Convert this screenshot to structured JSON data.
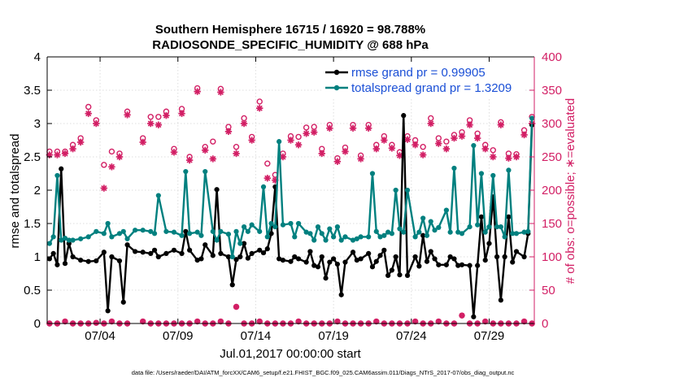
{
  "colors": {
    "rmse": "#000000",
    "spread": "#00807f",
    "obs": "#d21e64",
    "legend_text": "#1a4fd6",
    "axes": "#000000"
  },
  "chart_data": {
    "type": "line",
    "title_line1": "Southern Hemisphere 16715 / 16920 = 98.788%",
    "title_line2": "RADIOSONDE_SPECIFIC_HUMIDITY @ 688 hPa",
    "xlabel": "Jul.01,2017 00:00:00 start",
    "ylabel_left": "rmse and totalspread",
    "ylabel_right": "# of obs: o=possible; ∗=evaluated",
    "xlim": [
      0.6,
      31.9
    ],
    "ylim_left": [
      0,
      4
    ],
    "ylim_right": [
      0,
      400
    ],
    "x_ticks": [
      4,
      9,
      14,
      19,
      24,
      29
    ],
    "x_tick_labels": [
      "07/04",
      "07/09",
      "07/14",
      "07/19",
      "07/24",
      "07/29"
    ],
    "y_ticks_left": [
      "0",
      "0.5",
      "1",
      "1.5",
      "2",
      "2.5",
      "3",
      "3.5",
      "4"
    ],
    "y_ticks_right": [
      "0",
      "50",
      "100",
      "150",
      "200",
      "250",
      "300",
      "350",
      "400"
    ],
    "legend": [
      {
        "name": "rmse",
        "label": "rmse grand pr = 0.99905"
      },
      {
        "name": "totalspread",
        "label": "totalspread grand pr = 1.3209"
      }
    ],
    "series": [
      {
        "name": "rmse",
        "axis": "left",
        "x": [
          0.75,
          1.0,
          1.25,
          1.5,
          1.75,
          2.0,
          2.25,
          2.75,
          3.25,
          3.75,
          4.25,
          4.5,
          4.75,
          5.25,
          5.5,
          5.75,
          6.25,
          6.75,
          7.25,
          7.5,
          7.75,
          8.25,
          8.75,
          9.25,
          9.5,
          9.75,
          10.25,
          10.5,
          10.75,
          11.25,
          11.5,
          11.75,
          12.25,
          12.5,
          12.75,
          13.0,
          13.25,
          13.5,
          13.75,
          14.25,
          14.5,
          14.75,
          15.0,
          15.25,
          15.5,
          15.75,
          16.25,
          16.5,
          16.75,
          17.25,
          17.5,
          17.75,
          18.0,
          18.25,
          18.5,
          18.75,
          19.0,
          19.25,
          19.5,
          19.75,
          20.25,
          20.5,
          20.75,
          21.25,
          21.5,
          21.75,
          22.0,
          22.25,
          22.5,
          22.75,
          23.0,
          23.25,
          23.5,
          23.75,
          24.25,
          24.5,
          24.75,
          25.0,
          25.25,
          25.5,
          25.75,
          26.25,
          26.5,
          26.75,
          27.0,
          27.25,
          27.75,
          28.0,
          28.25,
          28.5,
          28.75,
          29.0,
          29.25,
          29.5,
          29.75,
          30.0,
          30.25,
          30.5,
          30.75,
          31.25,
          31.5,
          31.75
        ],
        "y": [
          0.97,
          1.05,
          0.88,
          2.32,
          0.9,
          1.2,
          1.0,
          0.95,
          0.93,
          0.94,
          1.07,
          0.19,
          1.0,
          0.94,
          0.32,
          1.18,
          1.08,
          1.07,
          1.05,
          1.1,
          1.0,
          1.05,
          1.1,
          1.05,
          1.38,
          1.1,
          0.95,
          0.97,
          1.18,
          1.02,
          2.01,
          1.05,
          1.0,
          0.58,
          0.96,
          1.0,
          1.2,
          0.98,
          1.05,
          1.1,
          1.06,
          1.12,
          1.35,
          2.05,
          0.97,
          0.95,
          0.93,
          1.0,
          0.97,
          0.92,
          1.08,
          0.87,
          0.85,
          1.0,
          0.68,
          0.92,
          0.97,
          0.89,
          0.43,
          0.92,
          1.07,
          0.95,
          0.97,
          1.05,
          0.85,
          0.93,
          1.02,
          1.1,
          0.72,
          0.8,
          1.0,
          0.73,
          3.12,
          0.72,
          1.0,
          0.86,
          1.32,
          0.93,
          1.08,
          0.97,
          0.88,
          0.88,
          1.0,
          0.97,
          0.87,
          0.88,
          0.87,
          0.1,
          0.87,
          1.6,
          0.95,
          1.2,
          1.9,
          1.0,
          0.35,
          1.0,
          1.6,
          0.92,
          1.08,
          1.0,
          1.35,
          2.98
        ]
      },
      {
        "name": "totalspread",
        "axis": "left",
        "x": [
          0.75,
          1.0,
          1.25,
          1.5,
          1.75,
          2.0,
          2.25,
          2.75,
          3.25,
          3.75,
          4.25,
          4.5,
          4.75,
          5.25,
          5.5,
          5.75,
          6.25,
          6.75,
          7.25,
          7.5,
          7.75,
          8.25,
          8.75,
          9.25,
          9.5,
          9.75,
          10.25,
          10.5,
          10.75,
          11.25,
          11.5,
          11.75,
          12.25,
          12.5,
          12.75,
          13.0,
          13.25,
          13.5,
          13.75,
          14.25,
          14.5,
          14.75,
          15.0,
          15.25,
          15.5,
          15.75,
          16.25,
          16.5,
          16.75,
          17.25,
          17.5,
          17.75,
          18.0,
          18.25,
          18.5,
          18.75,
          19.0,
          19.25,
          19.5,
          19.75,
          20.25,
          20.5,
          20.75,
          21.25,
          21.5,
          21.75,
          22.0,
          22.25,
          22.5,
          22.75,
          23.0,
          23.25,
          23.5,
          23.75,
          24.25,
          24.5,
          24.75,
          25.0,
          25.25,
          25.5,
          25.75,
          26.25,
          26.5,
          26.75,
          27.0,
          27.25,
          27.75,
          28.0,
          28.25,
          28.5,
          28.75,
          29.0,
          29.25,
          29.5,
          29.75,
          30.0,
          30.25,
          30.5,
          30.75,
          31.25,
          31.5,
          31.75
        ],
        "y": [
          1.2,
          1.3,
          2.22,
          1.25,
          1.28,
          1.25,
          1.25,
          1.27,
          1.3,
          1.38,
          1.35,
          1.5,
          1.3,
          1.35,
          1.38,
          1.27,
          1.4,
          1.4,
          1.38,
          1.35,
          1.92,
          1.38,
          1.37,
          1.32,
          2.28,
          1.35,
          1.37,
          1.32,
          2.28,
          1.38,
          1.25,
          1.38,
          1.34,
          1.0,
          1.38,
          1.2,
          1.45,
          1.38,
          1.48,
          1.38,
          2.05,
          1.3,
          1.5,
          1.45,
          2.73,
          1.48,
          1.5,
          1.3,
          1.5,
          1.37,
          1.35,
          1.25,
          1.45,
          1.35,
          1.25,
          1.42,
          1.3,
          1.45,
          1.25,
          1.3,
          1.25,
          1.27,
          1.3,
          1.3,
          2.25,
          1.38,
          1.3,
          1.32,
          1.37,
          1.35,
          2.0,
          1.42,
          1.37,
          2.0,
          1.3,
          1.37,
          1.58,
          1.32,
          1.53,
          1.4,
          1.44,
          1.7,
          1.37,
          2.33,
          1.37,
          1.35,
          1.45,
          2.67,
          1.48,
          2.25,
          1.37,
          1.45,
          2.22,
          1.45,
          1.45,
          1.3,
          2.3,
          1.35,
          1.35,
          1.37,
          1.38,
          3.08
        ]
      },
      {
        "name": "obs_possible",
        "axis": "right",
        "marker": "o",
        "x": [
          0.75,
          1.25,
          1.75,
          2.25,
          2.75,
          3.25,
          3.75,
          4.25,
          4.75,
          5.25,
          5.75,
          6.75,
          7.25,
          7.75,
          8.25,
          8.75,
          9.25,
          9.75,
          10.25,
          10.75,
          11.25,
          11.75,
          12.25,
          12.75,
          13.25,
          13.75,
          14.25,
          14.75,
          15.25,
          15.75,
          16.25,
          16.75,
          17.25,
          17.75,
          18.25,
          18.75,
          19.25,
          19.75,
          20.25,
          20.75,
          21.25,
          21.75,
          22.25,
          22.75,
          23.25,
          23.75,
          24.25,
          24.75,
          25.25,
          25.75,
          26.25,
          26.75,
          27.25,
          27.75,
          28.25,
          28.75,
          29.25,
          29.75,
          30.25,
          30.75,
          31.25,
          31.75
        ],
        "y": [
          258,
          258,
          258,
          268,
          278,
          325,
          305,
          238,
          258,
          255,
          318,
          278,
          310,
          310,
          318,
          262,
          322,
          250,
          353,
          265,
          273,
          352,
          295,
          265,
          308,
          280,
          333,
          240,
          223,
          255,
          281,
          280,
          294,
          295,
          262,
          298,
          248,
          264,
          298,
          252,
          298,
          268,
          281,
          268,
          257,
          281,
          275,
          265,
          308,
          278,
          273,
          283,
          287,
          305,
          285,
          268,
          260,
          302,
          255,
          254,
          290,
          310
        ]
      },
      {
        "name": "obs_evaluated",
        "axis": "right",
        "marker": "*",
        "x": [
          0.75,
          1.25,
          1.75,
          2.25,
          2.75,
          3.25,
          3.75,
          4.25,
          4.75,
          5.25,
          5.75,
          6.75,
          7.25,
          7.75,
          8.25,
          8.75,
          9.25,
          9.75,
          10.25,
          10.75,
          11.25,
          11.75,
          12.25,
          12.75,
          13.25,
          13.75,
          14.25,
          14.75,
          15.25,
          15.75,
          16.25,
          16.75,
          17.25,
          17.75,
          18.25,
          18.75,
          19.25,
          19.75,
          20.25,
          20.75,
          21.25,
          21.75,
          22.25,
          22.75,
          23.25,
          23.75,
          24.25,
          24.75,
          25.25,
          25.75,
          26.25,
          26.75,
          27.25,
          27.75,
          28.25,
          28.75,
          29.25,
          29.75,
          30.25,
          30.75,
          31.25,
          31.75
        ],
        "y": [
          253,
          253,
          255,
          262,
          272,
          315,
          300,
          203,
          235,
          250,
          313,
          272,
          300,
          298,
          312,
          257,
          315,
          245,
          348,
          260,
          247,
          347,
          288,
          255,
          300,
          275,
          323,
          218,
          215,
          250,
          275,
          268,
          285,
          287,
          255,
          293,
          243,
          258,
          293,
          247,
          293,
          262,
          275,
          263,
          252,
          276,
          268,
          253,
          300,
          270,
          262,
          278,
          281,
          298,
          278,
          262,
          250,
          298,
          248,
          250,
          283,
          300
        ]
      },
      {
        "name": "obs_low",
        "axis": "right",
        "marker": "o*",
        "x": [
          0.75,
          1.25,
          1.75,
          2.25,
          2.75,
          3.25,
          3.75,
          4.25,
          4.75,
          5.25,
          5.75,
          6.75,
          7.25,
          7.75,
          8.25,
          8.75,
          9.25,
          9.75,
          10.25,
          10.75,
          11.25,
          11.75,
          12.25,
          12.75,
          13.25,
          13.75,
          14.25,
          14.75,
          15.25,
          15.75,
          16.25,
          16.75,
          17.25,
          17.75,
          18.25,
          18.75,
          19.25,
          19.75,
          20.25,
          20.75,
          21.25,
          21.75,
          22.25,
          22.75,
          23.25,
          23.75,
          24.25,
          24.75,
          25.25,
          25.75,
          26.25,
          26.75,
          27.25,
          27.75,
          28.25,
          28.75,
          29.25,
          29.75,
          30.25,
          30.75,
          31.25,
          31.75
        ],
        "y": [
          0,
          0,
          3,
          0,
          0,
          0,
          1,
          0,
          3,
          0,
          0,
          3,
          0,
          0,
          0,
          0,
          0,
          0,
          3,
          0,
          0,
          3,
          0,
          25,
          0,
          0,
          3,
          0,
          0,
          0,
          0,
          3,
          0,
          0,
          0,
          0,
          3,
          0,
          0,
          0,
          0,
          3,
          0,
          0,
          0,
          0,
          3,
          0,
          0,
          3,
          0,
          0,
          12,
          0,
          0,
          3,
          0,
          0,
          0,
          0,
          3,
          0
        ]
      }
    ]
  },
  "footer": {
    "data_file": "data file: /Users/raeder/DAI/ATM_forcXX/CAM6_setup/f.e21.FHIST_BGC.f09_025.CAM6assim.011/Diags_NTrS_2017-07/obs_diag_output.nc"
  }
}
